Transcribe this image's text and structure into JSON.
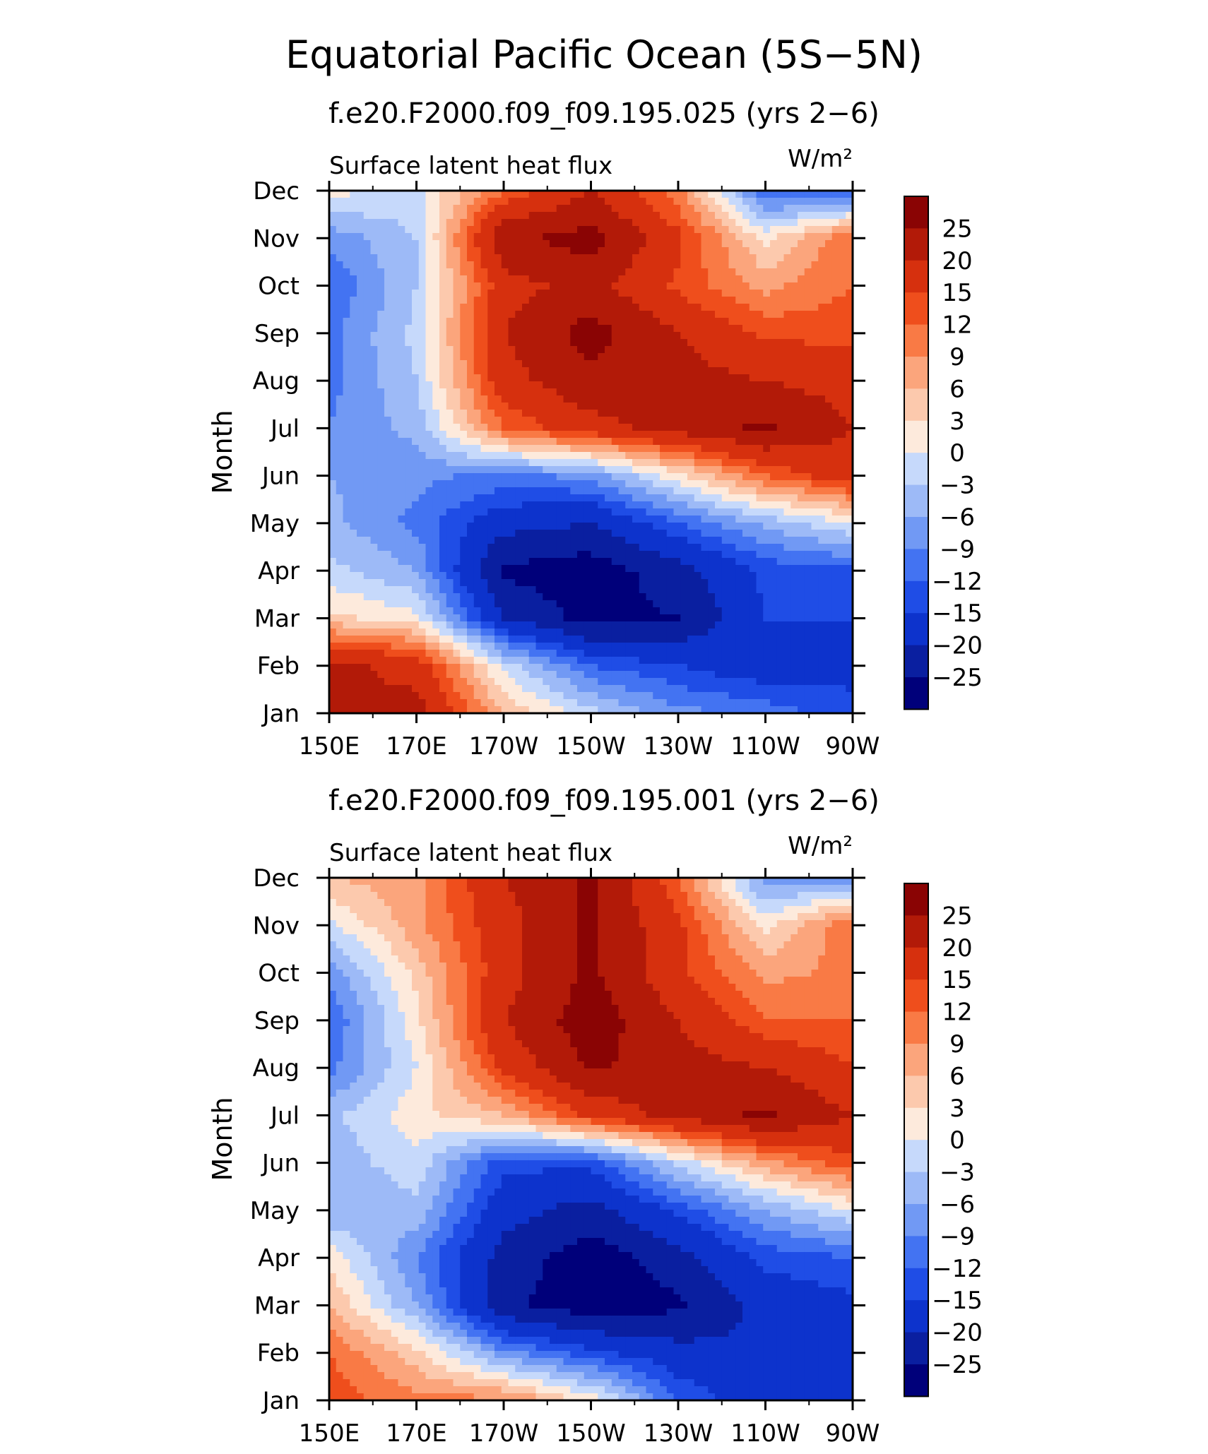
{
  "figure": {
    "title": "Equatorial Pacific Ocean (5S−5N)"
  },
  "colors": {
    "levels_palette": [
      "#00007a",
      "#0a1fa0",
      "#0d33cc",
      "#1f4de6",
      "#4373f2",
      "#7199f4",
      "#9dbaf7",
      "#c6d9fb",
      "#fdeadc",
      "#fcc9ad",
      "#fba57c",
      "#f97a45",
      "#ef4e1c",
      "#d6300e",
      "#b21a08",
      "#8a0404"
    ],
    "ink": "#000000"
  },
  "chart_data": [
    {
      "type": "heatmap",
      "subtitle": "f.e20.F2000.f09_f09.195.025 (yrs 2−6)",
      "variable_label": "Surface latent heat flux",
      "units_label": "W/m²",
      "ylabel": "Month",
      "xlabel": "",
      "x": [
        "150E",
        "170E",
        "170W",
        "150W",
        "130W",
        "110W",
        "90W"
      ],
      "y": [
        "Jan",
        "Feb",
        "Mar",
        "Apr",
        "May",
        "Jun",
        "Jul",
        "Aug",
        "Sep",
        "Oct",
        "Nov",
        "Dec"
      ],
      "colorbar": {
        "labels": [
          "25",
          "20",
          "15",
          "12",
          "9",
          "6",
          "3",
          "0",
          "−3",
          "−6",
          "−9",
          "−12",
          "−15",
          "−20",
          "−25"
        ],
        "levels": [
          -25,
          -20,
          -15,
          -12,
          -9,
          -6,
          -3,
          0,
          3,
          6,
          9,
          12,
          15,
          20,
          25
        ]
      },
      "values": [
        [
          20,
          22,
          6,
          -2,
          -8,
          -10,
          -14
        ],
        [
          22,
          18,
          -1,
          -12,
          -15,
          -18,
          -16
        ],
        [
          4,
          1,
          -20,
          -27,
          -25,
          -15,
          -15
        ],
        [
          -2,
          -6,
          -26,
          -28,
          -22,
          -14,
          -13
        ],
        [
          -5,
          -10,
          -18,
          -20,
          -12,
          -5,
          0
        ],
        [
          -6,
          -8,
          -10,
          -8,
          2,
          12,
          18
        ],
        [
          -9,
          -5,
          12,
          18,
          22,
          26,
          20
        ],
        [
          -10,
          -3,
          18,
          24,
          22,
          20,
          18
        ],
        [
          -10,
          -2,
          20,
          27,
          20,
          14,
          14
        ],
        [
          -12,
          -3,
          18,
          22,
          14,
          8,
          12
        ],
        [
          -8,
          -3,
          24,
          27,
          16,
          2,
          12
        ],
        [
          1,
          -1,
          12,
          20,
          10,
          -12,
          -12
        ]
      ]
    },
    {
      "type": "heatmap",
      "subtitle": "f.e20.F2000.f09_f09.195.001 (yrs 2−6)",
      "variable_label": "Surface latent heat flux",
      "units_label": "W/m²",
      "ylabel": "Month",
      "xlabel": "",
      "x": [
        "150E",
        "170E",
        "170W",
        "150W",
        "130W",
        "110W",
        "90W"
      ],
      "y": [
        "Jan",
        "Feb",
        "Mar",
        "Apr",
        "May",
        "Jun",
        "Jul",
        "Aug",
        "Sep",
        "Oct",
        "Nov",
        "Dec"
      ],
      "colorbar": {
        "labels": [
          "25",
          "20",
          "15",
          "12",
          "9",
          "6",
          "3",
          "0",
          "−3",
          "−6",
          "−9",
          "−12",
          "−15",
          "−20",
          "−25"
        ],
        "levels": [
          -25,
          -20,
          -15,
          -12,
          -9,
          -6,
          -3,
          0,
          3,
          6,
          9,
          12,
          15,
          20,
          25
        ]
      },
      "values": [
        [
          14,
          10,
          10,
          2,
          -12,
          -18,
          -18
        ],
        [
          12,
          4,
          -8,
          -14,
          -18,
          -20,
          -20
        ],
        [
          6,
          -6,
          -24,
          -28,
          -26,
          -18,
          -16
        ],
        [
          2,
          -9,
          -22,
          -28,
          -22,
          -14,
          -12
        ],
        [
          -6,
          -4,
          -18,
          -22,
          -14,
          -6,
          0
        ],
        [
          -5,
          -1,
          -14,
          -14,
          -2,
          8,
          14
        ],
        [
          -4,
          2,
          6,
          16,
          22,
          26,
          20
        ],
        [
          -10,
          0,
          16,
          26,
          22,
          20,
          15
        ],
        [
          -12,
          2,
          20,
          28,
          20,
          12,
          12
        ],
        [
          -8,
          4,
          18,
          26,
          16,
          8,
          10
        ],
        [
          -1,
          8,
          18,
          26,
          16,
          2,
          12
        ],
        [
          6,
          8,
          20,
          26,
          12,
          -8,
          -8
        ]
      ]
    }
  ]
}
